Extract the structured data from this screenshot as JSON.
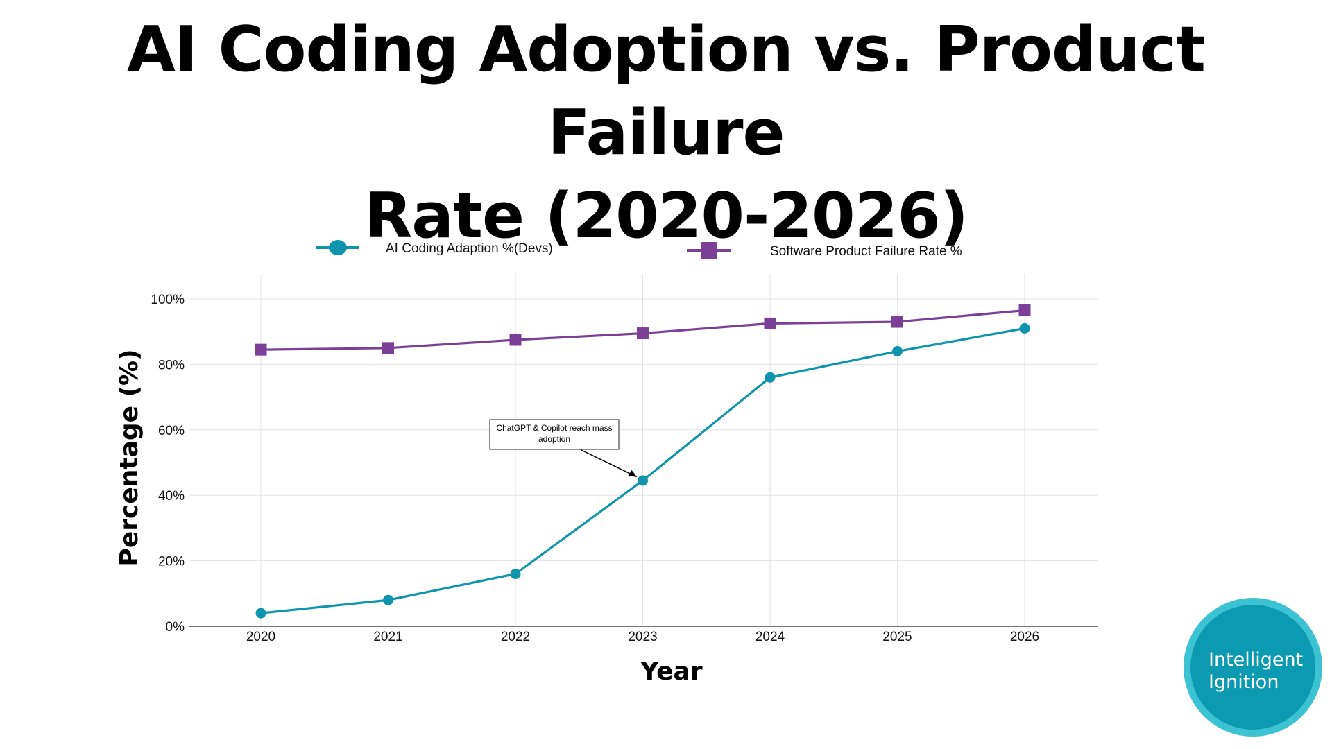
{
  "title": {
    "line1": "AI Coding Adoption vs. Product Failure",
    "line2": "Rate (2020-2026)"
  },
  "chart_data": {
    "type": "line",
    "title": "AI Coding Adoption vs. Product Failure Rate (2020-2026)",
    "xlabel": "Year",
    "ylabel": "Percentage (%)",
    "categories": [
      "2020",
      "2021",
      "2022",
      "2023",
      "2024",
      "2025",
      "2026"
    ],
    "ylim": [
      0,
      100
    ],
    "yticks": [
      "0%",
      "20%",
      "40%",
      "60%",
      "80%",
      "100%"
    ],
    "grid": true,
    "legend_position": "top",
    "series": [
      {
        "name": "AI Coding Adaption %(Devs)",
        "marker": "circle",
        "color": "#0e95ad",
        "values": [
          4,
          8,
          16,
          44.5,
          76,
          84,
          91
        ]
      },
      {
        "name": "Software Product Failure Rate %",
        "marker": "square",
        "color": "#7b3f98",
        "values": [
          84.5,
          85,
          87.5,
          89.5,
          92.5,
          93,
          96.5
        ]
      }
    ],
    "annotations": [
      {
        "text": "ChatGPT & Copilot reach mass adoption",
        "line1": "ChatGPT & Copilot reach mass",
        "line2": "adoption",
        "x": "2023",
        "y": 44.5
      }
    ]
  },
  "logo": {
    "line1": "Intelligent",
    "line2": "Ignition"
  }
}
